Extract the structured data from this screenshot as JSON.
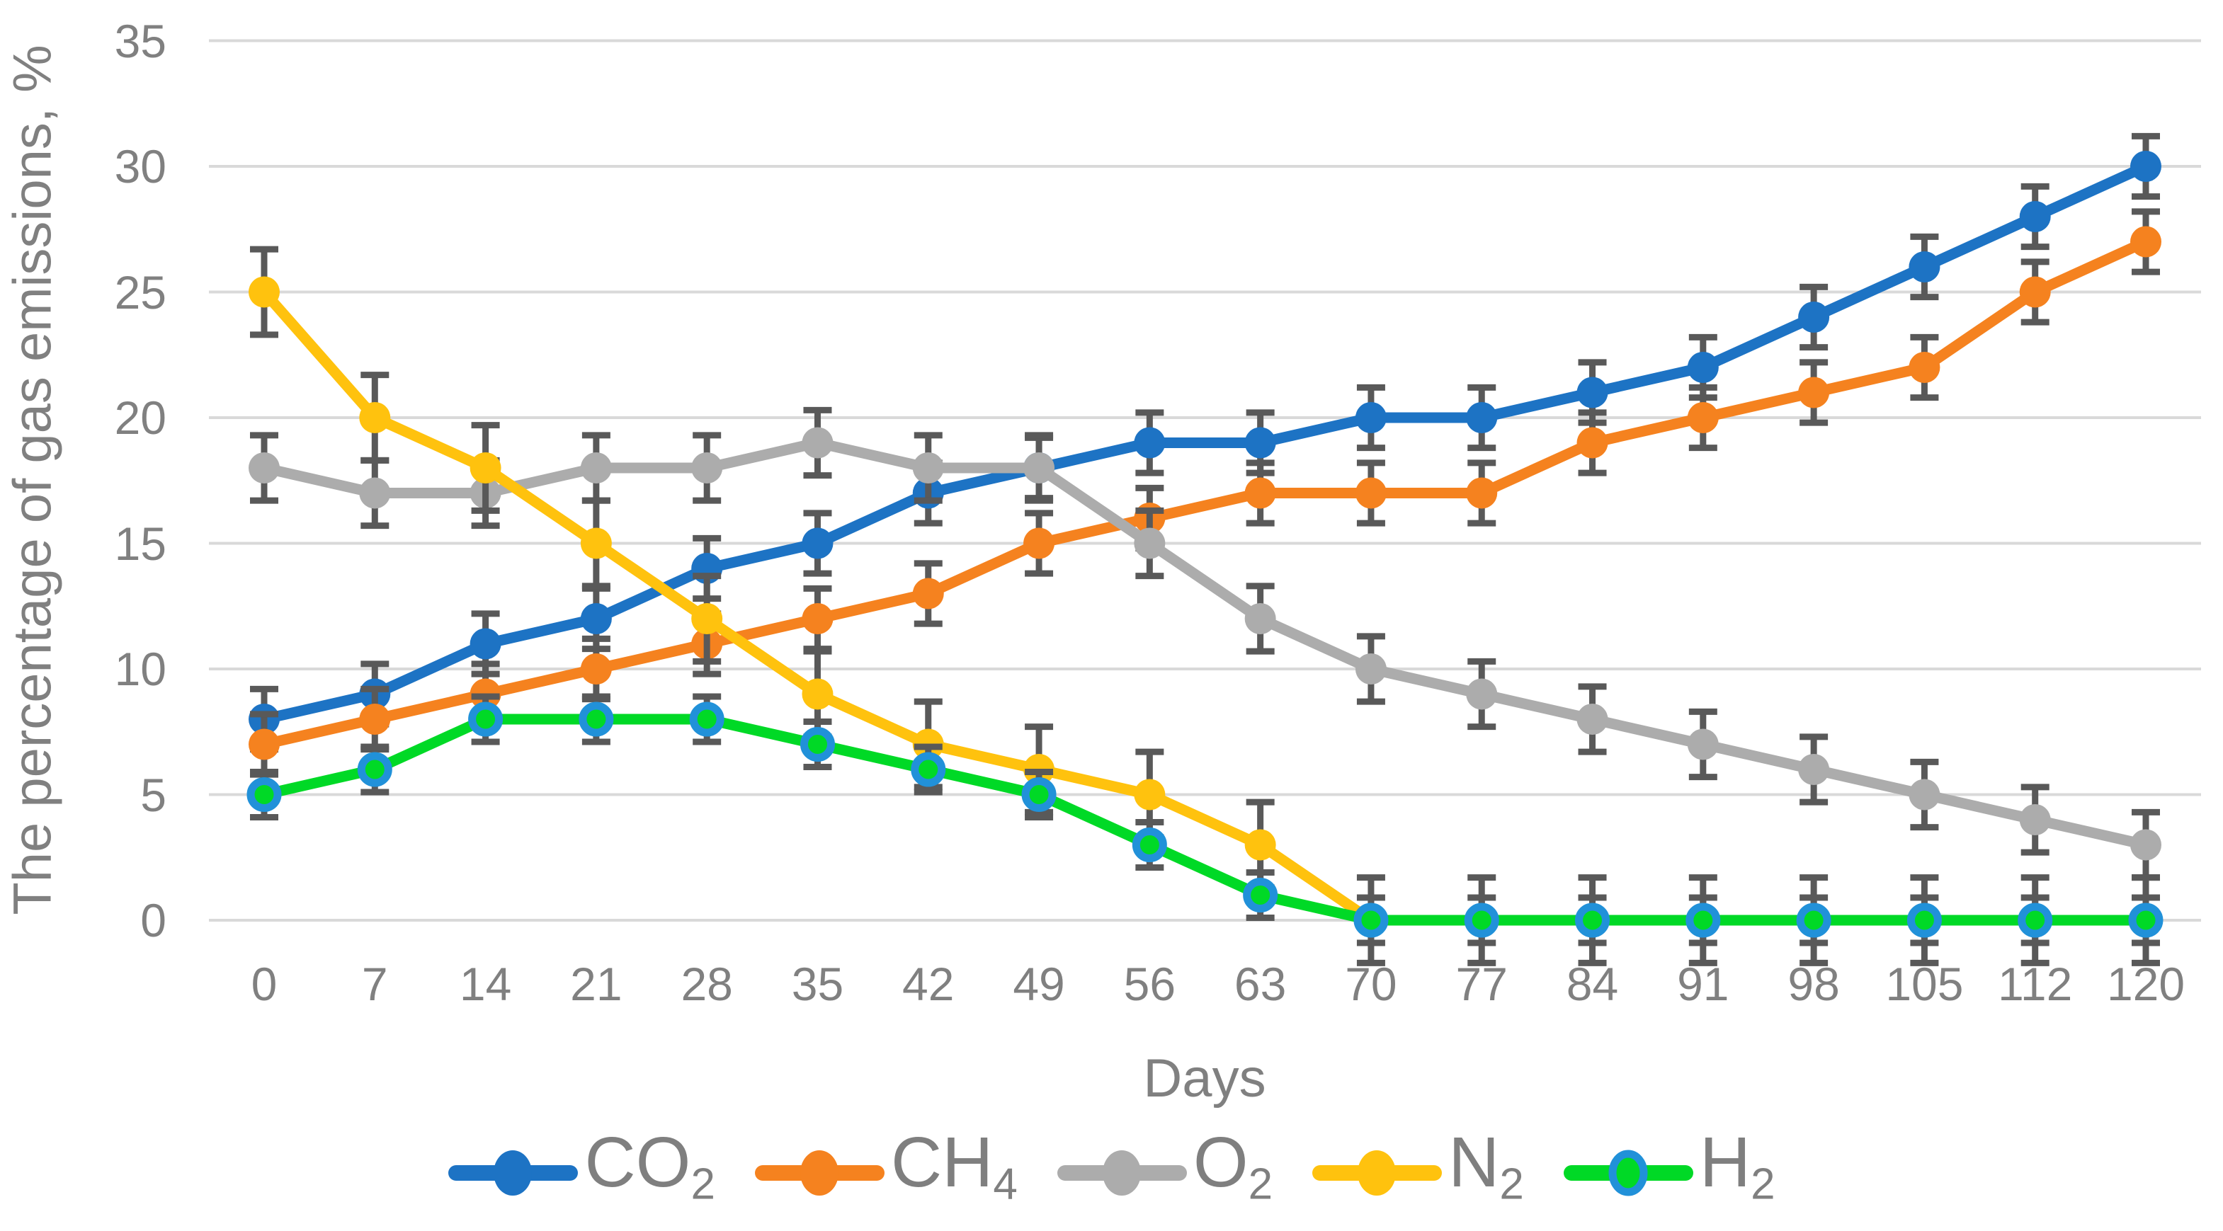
{
  "chart_data": {
    "type": "line",
    "title": "",
    "xlabel": "Days",
    "ylabel": "The percentage of gas emissions, %",
    "x_categories": [
      0,
      7,
      14,
      21,
      28,
      35,
      42,
      49,
      56,
      63,
      70,
      77,
      84,
      91,
      98,
      105,
      112,
      120
    ],
    "yticks": [
      0,
      5,
      10,
      15,
      20,
      25,
      30,
      35
    ],
    "ylim": [
      0,
      35
    ],
    "grid": "horizontal",
    "legend_position": "bottom",
    "error_bars": true,
    "series": [
      {
        "name": "CO2",
        "label_main": "CO",
        "label_sub": "2",
        "color": "#1D73C4",
        "marker": "circle",
        "error": 1.2,
        "values": [
          8,
          9,
          11,
          12,
          14,
          15,
          17,
          18,
          19,
          19,
          20,
          20,
          21,
          22,
          24,
          26,
          28,
          30
        ]
      },
      {
        "name": "CH4",
        "label_main": "CH",
        "label_sub": "4",
        "color": "#F5821F",
        "marker": "circle",
        "error": 1.2,
        "values": [
          7,
          8,
          9,
          10,
          11,
          12,
          13,
          15,
          16,
          17,
          17,
          17,
          19,
          20,
          21,
          22,
          25,
          27
        ]
      },
      {
        "name": "O2",
        "label_main": "O",
        "label_sub": "2",
        "color": "#ACACAC",
        "marker": "circle",
        "error": 1.3,
        "values": [
          18,
          17,
          17,
          18,
          18,
          19,
          18,
          18,
          15,
          12,
          10,
          9,
          8,
          7,
          6,
          5,
          4,
          3
        ]
      },
      {
        "name": "N2",
        "label_main": "N",
        "label_sub": "2",
        "color": "#FFC20E",
        "marker": "circle",
        "error": 1.7,
        "values": [
          25,
          20,
          18,
          15,
          12,
          9,
          7,
          6,
          5,
          3,
          0,
          0,
          0,
          0,
          0,
          0,
          0,
          0
        ]
      },
      {
        "name": "H2",
        "label_main": "H",
        "label_sub": "2",
        "color": "#00D926",
        "marker": "ring",
        "marker_ring_color": "#2191D9",
        "error": 0.9,
        "values": [
          5,
          6,
          8,
          8,
          8,
          7,
          6,
          5,
          3,
          1,
          0,
          0,
          0,
          0,
          0,
          0,
          0,
          0
        ]
      }
    ],
    "colors": {
      "gridline": "#D9D9D9",
      "error_bar": "#595959",
      "axis_text": "#808080",
      "legend_text": "#7F7F7F",
      "background": "#FFFFFF"
    }
  }
}
